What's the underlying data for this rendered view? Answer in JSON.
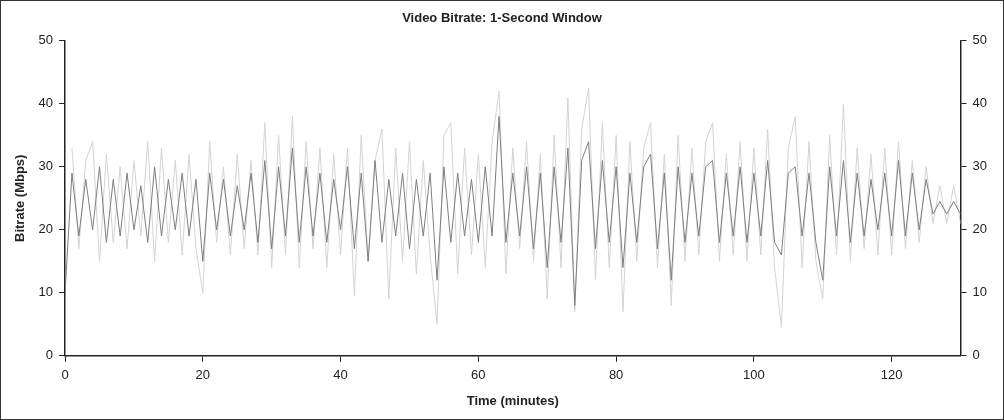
{
  "chart_data": {
    "type": "line",
    "title": "Video Bitrate: 1-Second Window",
    "xlabel": "Time (minutes)",
    "ylabel": "Bitrate (Mbps)",
    "x": [
      0,
      1,
      2,
      3,
      4,
      5,
      6,
      7,
      8,
      9,
      10,
      11,
      12,
      13,
      14,
      15,
      16,
      17,
      18,
      19,
      20,
      21,
      22,
      23,
      24,
      25,
      26,
      27,
      28,
      29,
      30,
      31,
      32,
      33,
      34,
      35,
      36,
      37,
      38,
      39,
      40,
      41,
      42,
      43,
      44,
      45,
      46,
      47,
      48,
      49,
      50,
      51,
      52,
      53,
      54,
      55,
      56,
      57,
      58,
      59,
      60,
      61,
      62,
      63,
      64,
      65,
      66,
      67,
      68,
      69,
      70,
      71,
      72,
      73,
      74,
      75,
      76,
      77,
      78,
      79,
      80,
      81,
      82,
      83,
      84,
      85,
      86,
      87,
      88,
      89,
      90,
      91,
      92,
      93,
      94,
      95,
      96,
      97,
      98,
      99,
      100,
      101,
      102,
      103,
      104,
      105,
      106,
      107,
      108,
      109,
      110,
      111,
      112,
      113,
      114,
      115,
      116,
      117,
      118,
      119,
      120,
      121,
      122,
      123,
      124,
      125,
      126,
      127,
      128,
      129,
      130
    ],
    "series": [
      {
        "color": "#d4d4d4",
        "values": [
          null,
          33,
          17,
          31,
          34,
          15,
          32,
          18,
          30,
          17,
          31,
          19,
          34,
          15,
          33,
          18,
          31,
          16,
          32,
          17,
          10,
          34,
          18,
          30,
          16,
          32,
          17,
          31,
          16,
          37,
          14,
          35,
          16,
          38,
          14,
          34,
          17,
          33,
          14,
          32,
          16,
          33,
          9.5,
          35,
          15,
          31,
          36,
          9,
          33,
          15,
          34,
          13,
          31,
          16,
          5,
          35,
          37,
          13,
          33,
          16,
          32,
          14,
          34,
          42,
          13,
          33,
          17,
          34,
          15,
          32,
          9,
          35,
          14,
          41,
          7,
          36,
          42.5,
          12,
          37,
          14,
          35,
          7,
          34,
          15,
          33,
          37,
          14,
          32,
          8,
          35,
          15,
          33,
          16,
          34,
          37,
          15,
          32,
          16,
          34,
          15,
          33,
          16,
          36,
          14,
          4.5,
          33,
          38,
          14,
          34,
          15,
          9,
          35,
          16,
          40,
          15,
          33,
          17,
          32,
          16,
          33,
          16,
          34,
          17,
          31,
          18,
          30,
          21,
          27,
          21,
          27,
          21
        ]
      },
      {
        "color": "#7f7f7f",
        "values": [
          10,
          29,
          19,
          28,
          20,
          30,
          18,
          28,
          19,
          29,
          20,
          27,
          18,
          30,
          19,
          28,
          20,
          29,
          19,
          28,
          15,
          29,
          20,
          28,
          19,
          27,
          20,
          29,
          18,
          31,
          17,
          30,
          19,
          33,
          18,
          30,
          19,
          29,
          18,
          28,
          20,
          30,
          17,
          29,
          15,
          31,
          18,
          28,
          19,
          29,
          17,
          28,
          19,
          29,
          12,
          30,
          18,
          29,
          19,
          28,
          18,
          30,
          19,
          38,
          18,
          29,
          19,
          30,
          17,
          29,
          14,
          30,
          18,
          33,
          8,
          31,
          34,
          17,
          31,
          18,
          30,
          14,
          29,
          18,
          30,
          32,
          17,
          29,
          12,
          30,
          18,
          29,
          19,
          30,
          31,
          18,
          29,
          19,
          30,
          18,
          29,
          19,
          31,
          18,
          16,
          29,
          30,
          19,
          29,
          18,
          12,
          30,
          19,
          31,
          18,
          29,
          19,
          28,
          20,
          29,
          19,
          31,
          19,
          29,
          20,
          28,
          22.5,
          24.5,
          22.5,
          24.5,
          22.5
        ]
      }
    ],
    "xlim": [
      0,
      130
    ],
    "xticks": [
      0,
      20,
      40,
      60,
      80,
      100,
      120
    ],
    "ylim": [
      0,
      50
    ],
    "yticks": [
      0,
      10,
      20,
      30,
      40,
      50
    ],
    "y2lim": [
      0,
      50
    ],
    "y2ticks": [
      0,
      10,
      20,
      30,
      40,
      50
    ],
    "grid": false,
    "legend": false,
    "marker": "none",
    "line_style": "solid"
  }
}
